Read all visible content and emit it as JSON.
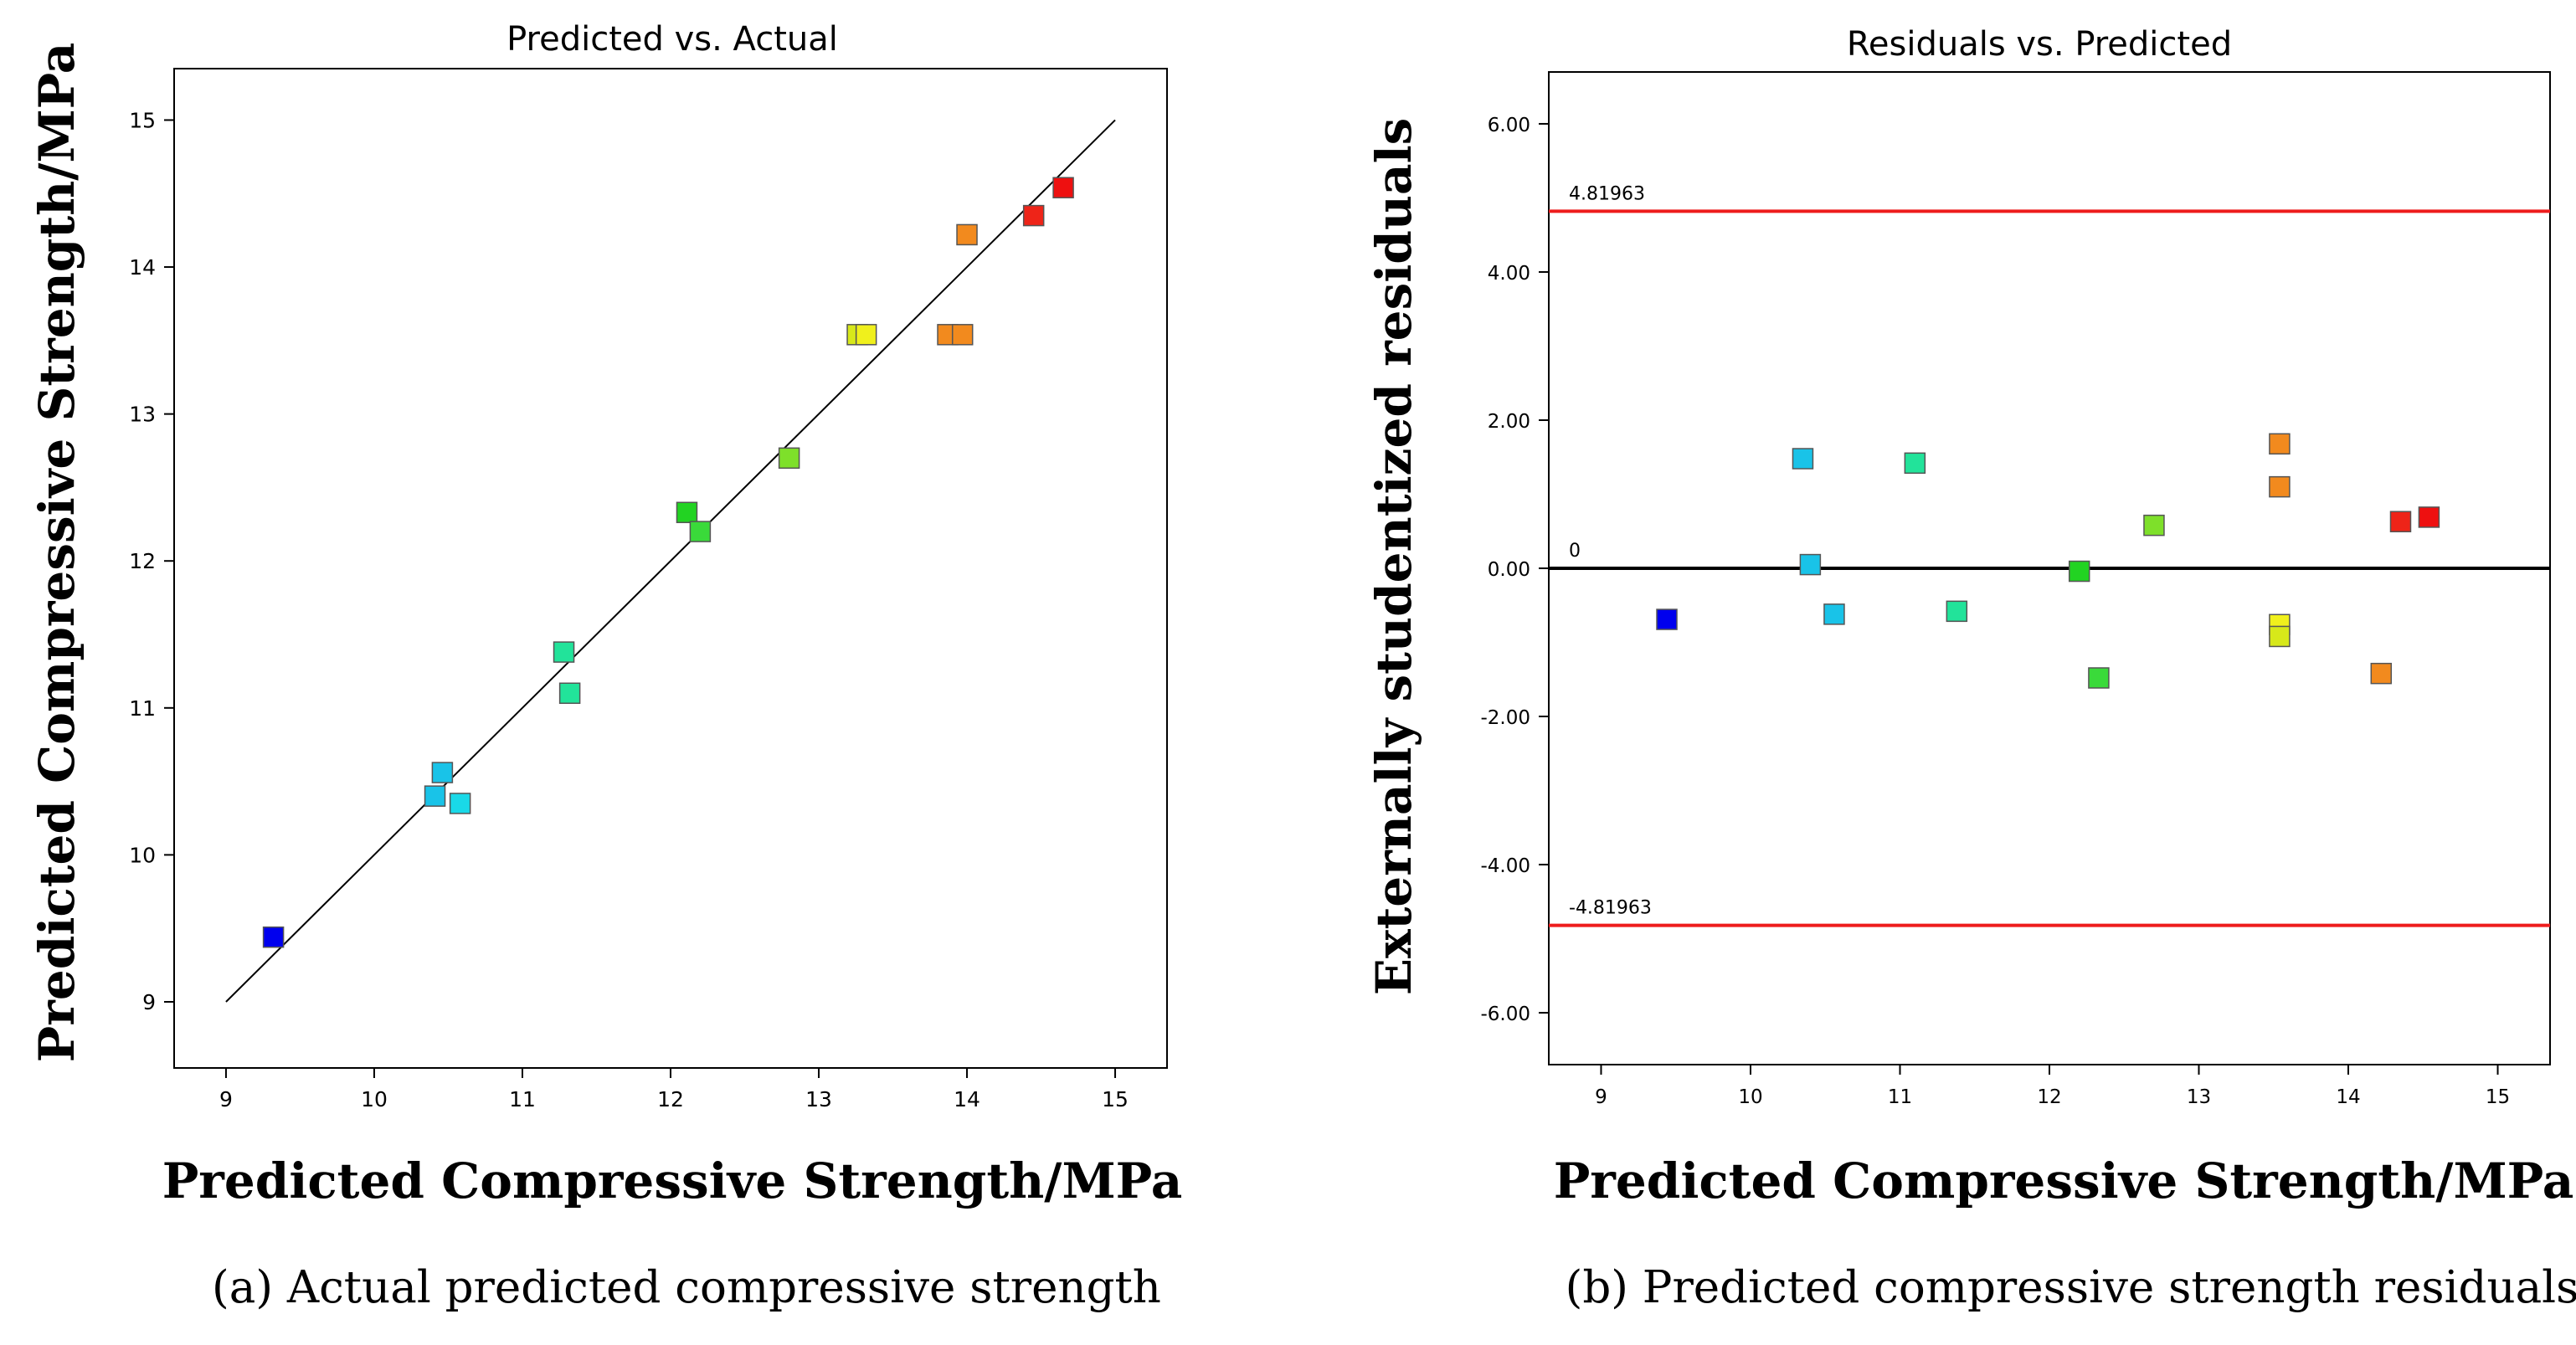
{
  "chart_data": [
    {
      "type": "scatter",
      "title": "Predicted vs. Actual",
      "xlabel": "Predicted Compressive Strength/MPa",
      "ylabel": "Predicted Compressive Strength/MPa",
      "caption": "(a) Actual predicted compressive strength",
      "xlim": [
        8.65,
        15.35
      ],
      "ylim": [
        8.55,
        15.35
      ],
      "xticks": [
        9,
        10,
        11,
        12,
        13,
        14,
        15
      ],
      "yticks": [
        9,
        10,
        11,
        12,
        13,
        14,
        15
      ],
      "grid": false,
      "reference_line": {
        "from": [
          9,
          9
        ],
        "to": [
          15,
          15
        ],
        "color": "#000000"
      },
      "points": [
        {
          "x": 9.32,
          "y": 9.44,
          "color": "#0000ee"
        },
        {
          "x": 10.41,
          "y": 10.4,
          "color": "#19c3e8"
        },
        {
          "x": 10.46,
          "y": 10.56,
          "color": "#19c3e8"
        },
        {
          "x": 10.58,
          "y": 10.35,
          "color": "#19d9e8"
        },
        {
          "x": 11.28,
          "y": 11.38,
          "color": "#22e39a"
        },
        {
          "x": 11.32,
          "y": 11.1,
          "color": "#22e39a"
        },
        {
          "x": 12.11,
          "y": 12.33,
          "color": "#22d322"
        },
        {
          "x": 12.2,
          "y": 12.2,
          "color": "#3ada3a"
        },
        {
          "x": 12.8,
          "y": 12.7,
          "color": "#7ee02a"
        },
        {
          "x": 13.26,
          "y": 13.54,
          "color": "#d7e81a"
        },
        {
          "x": 13.32,
          "y": 13.54,
          "color": "#f0f01c"
        },
        {
          "x": 13.87,
          "y": 13.54,
          "color": "#f28a1e"
        },
        {
          "x": 13.97,
          "y": 13.54,
          "color": "#f28a1e"
        },
        {
          "x": 14.0,
          "y": 14.22,
          "color": "#f28a1e"
        },
        {
          "x": 14.45,
          "y": 14.35,
          "color": "#ee2418"
        },
        {
          "x": 14.65,
          "y": 14.54,
          "color": "#ee1010"
        }
      ]
    },
    {
      "type": "scatter",
      "title": "Residuals vs. Predicted",
      "xlabel": "Predicted Compressive Strength/MPa",
      "ylabel": "Externally studentized residuals",
      "caption": "(b) Predicted compressive strength residuals",
      "xlim": [
        8.65,
        15.35
      ],
      "ylim": [
        -6.7,
        6.7
      ],
      "xticks": [
        9,
        10,
        11,
        12,
        13,
        14,
        15
      ],
      "yticks": [
        "6.00",
        "4.00",
        "2.00",
        "0.00",
        "-2.00",
        "-4.00",
        "-6.00"
      ],
      "grid": false,
      "limit_lines": [
        {
          "value": 4.81963,
          "label": "4.81963",
          "color": "#ee1c1c"
        },
        {
          "value": -4.81963,
          "label": "-4.81963",
          "color": "#ee1c1c"
        },
        {
          "value": 0,
          "label": "0",
          "color": "#000000"
        }
      ],
      "points": [
        {
          "x": 9.44,
          "y": -0.69,
          "color": "#0000ee"
        },
        {
          "x": 10.35,
          "y": 1.48,
          "color": "#19c3e8"
        },
        {
          "x": 10.4,
          "y": 0.05,
          "color": "#19c3e8"
        },
        {
          "x": 10.56,
          "y": -0.62,
          "color": "#19c3e8"
        },
        {
          "x": 11.1,
          "y": 1.42,
          "color": "#22e39a"
        },
        {
          "x": 11.38,
          "y": -0.58,
          "color": "#22e39a"
        },
        {
          "x": 12.2,
          "y": -0.04,
          "color": "#22d322"
        },
        {
          "x": 12.33,
          "y": -1.48,
          "color": "#3ada3a"
        },
        {
          "x": 12.7,
          "y": 0.58,
          "color": "#7ee02a"
        },
        {
          "x": 13.54,
          "y": 1.68,
          "color": "#f28a1e"
        },
        {
          "x": 13.54,
          "y": 1.1,
          "color": "#f28a1e"
        },
        {
          "x": 13.54,
          "y": -0.76,
          "color": "#f0f01c"
        },
        {
          "x": 13.54,
          "y": -0.92,
          "color": "#d7e81a"
        },
        {
          "x": 14.22,
          "y": -1.42,
          "color": "#f28a1e"
        },
        {
          "x": 14.35,
          "y": 0.63,
          "color": "#ee2418"
        },
        {
          "x": 14.54,
          "y": 0.69,
          "color": "#ee1010"
        }
      ]
    }
  ]
}
